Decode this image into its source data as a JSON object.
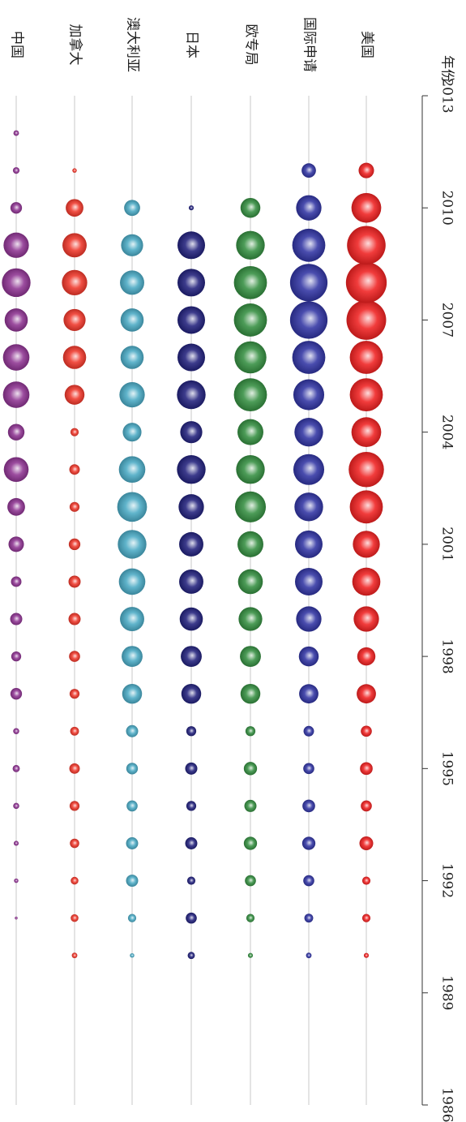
{
  "chart_data": {
    "type": "scatter",
    "title": "",
    "xlabel": "年份",
    "ylabel": "",
    "xlim": [
      1986,
      2013
    ],
    "x_ticks": [
      1986,
      1989,
      1992,
      1995,
      1998,
      2001,
      2004,
      2007,
      2010,
      2013
    ],
    "tick_labels": [
      "1986",
      "1989",
      "1992",
      "1995",
      "1998",
      "2001",
      "2004",
      "2007",
      "2010",
      "2013"
    ],
    "size_encoding": "bubble size = relative magnitude (0–10 scale)",
    "years": [
      1990,
      1991,
      1992,
      1993,
      1994,
      1995,
      1996,
      1997,
      1998,
      1999,
      2000,
      2001,
      2002,
      2003,
      2004,
      2005,
      2006,
      2007,
      2008,
      2009,
      2010,
      2011,
      2012
    ],
    "series": [
      {
        "name": "中国",
        "color": "#8a2d8e",
        "values": [
          0,
          0.5,
          0.8,
          0.9,
          1.1,
          1.3,
          1.1,
          2.1,
          1.8,
          2.2,
          1.9,
          2.8,
          3.2,
          4.5,
          3.0,
          4.8,
          4.8,
          4.2,
          5.2,
          4.6,
          2.1,
          1.2,
          1.0
        ]
      },
      {
        "name": "加拿大",
        "color": "#ee3124",
        "values": [
          1.0,
          1.4,
          1.4,
          1.7,
          1.8,
          1.9,
          1.6,
          1.8,
          2.0,
          2.2,
          2.2,
          2.1,
          1.8,
          1.9,
          1.5,
          3.6,
          4.2,
          4.0,
          4.6,
          4.4,
          3.2,
          0.8,
          0
        ]
      },
      {
        "name": "澳大利亚",
        "color": "#44a7c2",
        "values": [
          0.8,
          1.5,
          2.2,
          2.2,
          2.0,
          2.1,
          2.2,
          3.6,
          3.8,
          4.4,
          4.8,
          5.2,
          5.4,
          4.8,
          3.4,
          4.6,
          4.2,
          4.2,
          4.4,
          4.0,
          2.9,
          0,
          0
        ]
      },
      {
        "name": "日本",
        "color": "#1b1a78",
        "values": [
          1.3,
          2.0,
          1.5,
          2.2,
          1.8,
          2.2,
          1.8,
          3.6,
          3.8,
          4.2,
          4.4,
          4.4,
          4.6,
          5.2,
          4.0,
          5.2,
          5.0,
          5.0,
          5.0,
          5.0,
          0.9,
          0,
          0
        ]
      },
      {
        "name": "欧专局",
        "color": "#2e8b3a",
        "values": [
          0.9,
          1.5,
          2.0,
          2.4,
          2.2,
          2.4,
          1.8,
          3.6,
          3.8,
          4.3,
          4.5,
          4.7,
          5.6,
          5.2,
          4.7,
          6.0,
          5.8,
          6.0,
          6.0,
          5.2,
          3.6,
          0,
          0
        ]
      },
      {
        "name": "国际申请",
        "color": "#2a2ea0",
        "values": [
          1.0,
          1.6,
          2.0,
          2.4,
          2.3,
          2.0,
          1.9,
          3.5,
          3.6,
          4.6,
          5.0,
          5.0,
          5.2,
          5.6,
          5.2,
          5.6,
          6.0,
          6.8,
          6.8,
          6.0,
          4.6,
          2.6,
          0
        ]
      },
      {
        "name": "美国",
        "color": "#ef1a1a",
        "values": [
          0.9,
          1.5,
          1.5,
          2.5,
          2.0,
          2.3,
          2.0,
          3.5,
          3.3,
          4.6,
          5.1,
          4.9,
          6.0,
          6.4,
          5.4,
          6.0,
          6.0,
          7.2,
          7.4,
          7.0,
          5.4,
          2.8,
          0
        ]
      }
    ]
  }
}
